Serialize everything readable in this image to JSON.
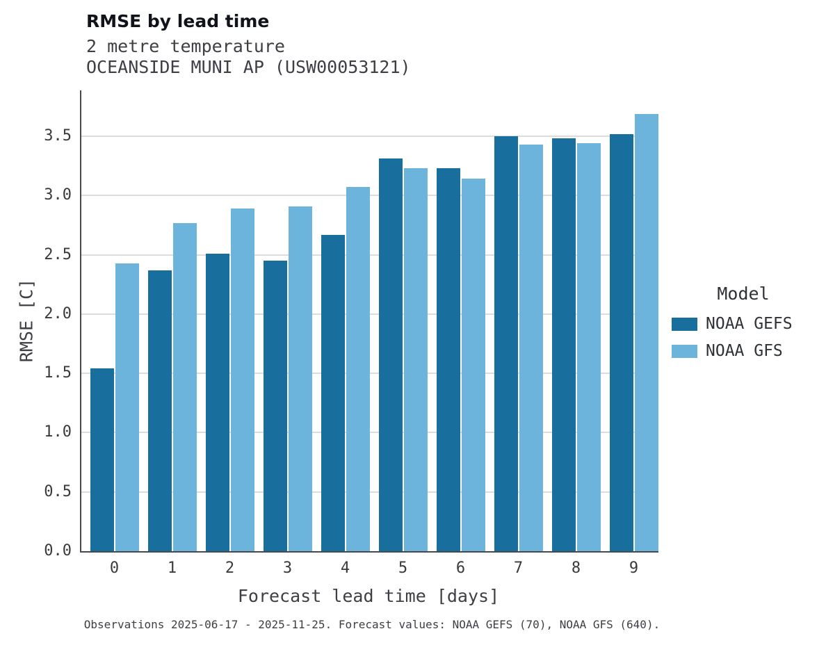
{
  "title": "RMSE by lead time",
  "subtitle_line1": "2 metre temperature",
  "subtitle_line2": "OCEANSIDE MUNI AP (USW00053121)",
  "caption": "Observations 2025-06-17 - 2025-11-25. Forecast values: NOAA GEFS (70), NOAA GFS (640).",
  "legend": {
    "title": "Model",
    "items": [
      {
        "label": "NOAA GEFS",
        "color": "#186f9d"
      },
      {
        "label": "NOAA GFS",
        "color": "#6db4dc"
      }
    ]
  },
  "chart_data": {
    "type": "bar",
    "categories": [
      "0",
      "1",
      "2",
      "3",
      "4",
      "5",
      "6",
      "7",
      "8",
      "9"
    ],
    "series": [
      {
        "name": "NOAA GEFS",
        "color": "#186f9d",
        "values": [
          1.54,
          2.37,
          2.51,
          2.45,
          2.67,
          3.31,
          3.23,
          3.5,
          3.48,
          3.52
        ]
      },
      {
        "name": "NOAA GFS",
        "color": "#6db4dc",
        "values": [
          2.43,
          2.77,
          2.89,
          2.91,
          3.07,
          3.23,
          3.14,
          3.43,
          3.44,
          3.69
        ]
      }
    ],
    "title": "RMSE by lead time",
    "subtitle": [
      "2 metre temperature",
      "OCEANSIDE MUNI AP (USW00053121)"
    ],
    "xlabel": "Forecast lead time [days]",
    "ylabel": "RMSE [C]",
    "ylim": [
      0,
      3.887
    ],
    "yticks": [
      0.0,
      0.5,
      1.0,
      1.5,
      2.0,
      2.5,
      3.0,
      3.5
    ],
    "grid": true,
    "legend_title": "Model",
    "legend_position": "right"
  }
}
